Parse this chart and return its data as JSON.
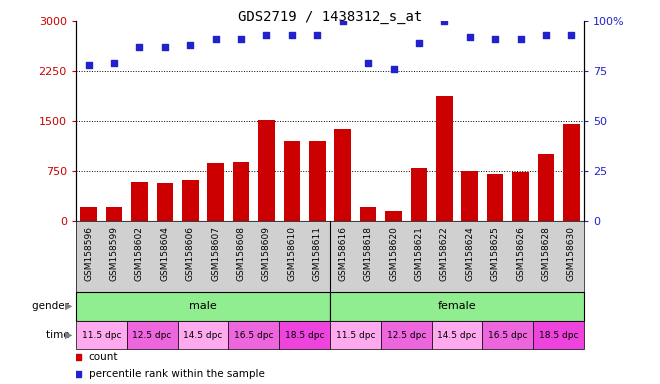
{
  "title": "GDS2719 / 1438312_s_at",
  "samples": [
    "GSM158596",
    "GSM158599",
    "GSM158602",
    "GSM158604",
    "GSM158606",
    "GSM158607",
    "GSM158608",
    "GSM158609",
    "GSM158610",
    "GSM158611",
    "GSM158616",
    "GSM158618",
    "GSM158620",
    "GSM158621",
    "GSM158622",
    "GSM158624",
    "GSM158625",
    "GSM158626",
    "GSM158628",
    "GSM158630"
  ],
  "counts": [
    200,
    210,
    580,
    570,
    610,
    870,
    880,
    1520,
    1200,
    1200,
    1380,
    200,
    145,
    800,
    1880,
    750,
    700,
    730,
    1000,
    1450
  ],
  "percentile_ranks": [
    78,
    79,
    87,
    87,
    88,
    91,
    91,
    93,
    93,
    93,
    100,
    79,
    76,
    89,
    100,
    92,
    91,
    91,
    93,
    93
  ],
  "bar_color": "#cc0000",
  "dot_color": "#2222cc",
  "ylim_left": [
    0,
    3000
  ],
  "ylim_right": [
    0,
    100
  ],
  "yticks_left": [
    0,
    750,
    1500,
    2250,
    3000
  ],
  "yticks_right": [
    0,
    25,
    50,
    75,
    100
  ],
  "male_color": "#90ee90",
  "female_color": "#90ee90",
  "time_labels": [
    "11.5 dpc",
    "12.5 dpc",
    "14.5 dpc",
    "16.5 dpc",
    "18.5 dpc"
  ],
  "time_colors": [
    "#ffaaee",
    "#ee66dd",
    "#ffaaee",
    "#ee66dd",
    "#ee44dd"
  ],
  "tick_label_color_left": "#cc0000",
  "tick_label_color_right": "#2222cc",
  "background_color": "#ffffff",
  "sample_bg_color": "#d0d0d0",
  "title_fontsize": 10,
  "tick_fontsize": 8,
  "bar_label_fontsize": 6.5
}
